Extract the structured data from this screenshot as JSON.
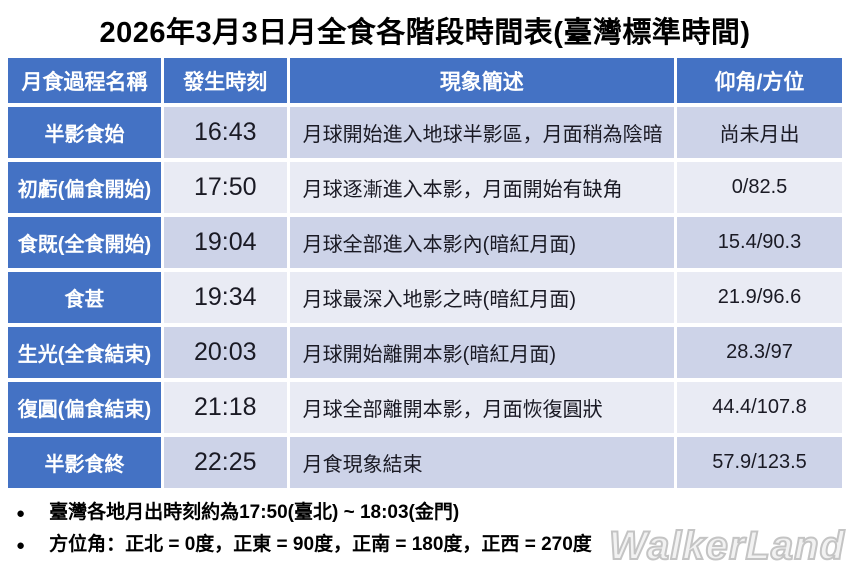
{
  "title": "2026年3月3日月全食各階段時間表(臺灣標準時間)",
  "colors": {
    "header_bg": "#4472C4",
    "row_odd_bg": "#CDD3E8",
    "row_even_bg": "#E9EBF4",
    "header_text": "#FFFFFF",
    "body_text": "#1A1A24",
    "watermark": "#C4C4C4"
  },
  "table": {
    "headers": [
      "月食過程名稱",
      "發生時刻",
      "現象簡述",
      "仰角/方位"
    ],
    "rows": [
      {
        "phase": "半影食始",
        "time": "16:43",
        "description": "月球開始進入地球半影區，月面稍為陰暗",
        "angle": "尚未月出"
      },
      {
        "phase": "初虧(偏食開始)",
        "time": "17:50",
        "description": "月球逐漸進入本影，月面開始有缺角",
        "angle": "0/82.5"
      },
      {
        "phase": "食既(全食開始)",
        "time": "19:04",
        "description": "月球全部進入本影內(暗紅月面)",
        "angle": "15.4/90.3"
      },
      {
        "phase": "食甚",
        "time": "19:34",
        "description": "月球最深入地影之時(暗紅月面)",
        "angle": "21.9/96.6"
      },
      {
        "phase": "生光(全食結束)",
        "time": "20:03",
        "description": "月球開始離開本影(暗紅月面)",
        "angle": "28.3/97"
      },
      {
        "phase": "復圓(偏食結束)",
        "time": "21:18",
        "description": "月球全部離開本影，月面恢復圓狀",
        "angle": "44.4/107.8"
      },
      {
        "phase": "半影食終",
        "time": "22:25",
        "description": "月食現象結束",
        "angle": "57.9/123.5"
      }
    ]
  },
  "notes": {
    "bullet": "●",
    "items": [
      "臺灣各地月出時刻約為17:50(臺北) ~ 18:03(金門)",
      "方位角：正北 = 0度，正東 = 90度，正南 = 180度，正西 = 270度"
    ]
  },
  "watermark": "WalkerLand",
  "chart_data": {
    "type": "table",
    "title": "2026年3月3日月全食各階段時間表(臺灣標準時間)",
    "columns": [
      "月食過程名稱",
      "發生時刻",
      "現象簡述",
      "仰角/方位"
    ],
    "rows": [
      [
        "半影食始",
        "16:43",
        "月球開始進入地球半影區，月面稍為陰暗",
        "尚未月出"
      ],
      [
        "初虧(偏食開始)",
        "17:50",
        "月球逐漸進入本影，月面開始有缺角",
        "0/82.5"
      ],
      [
        "食既(全食開始)",
        "19:04",
        "月球全部進入本影內(暗紅月面)",
        "15.4/90.3"
      ],
      [
        "食甚",
        "19:34",
        "月球最深入地影之時(暗紅月面)",
        "21.9/96.6"
      ],
      [
        "生光(全食結束)",
        "20:03",
        "月球開始離開本影(暗紅月面)",
        "28.3/97"
      ],
      [
        "復圓(偏食結束)",
        "21:18",
        "月球全部離開本影，月面恢復圓狀",
        "44.4/107.8"
      ],
      [
        "半影食終",
        "22:25",
        "月食現象結束",
        "57.9/123.5"
      ]
    ],
    "annotations": [
      "臺灣各地月出時刻約為17:50(臺北) ~ 18:03(金門)",
      "方位角：正北 = 0度，正東 = 90度，正南 = 180度，正西 = 270度"
    ]
  }
}
